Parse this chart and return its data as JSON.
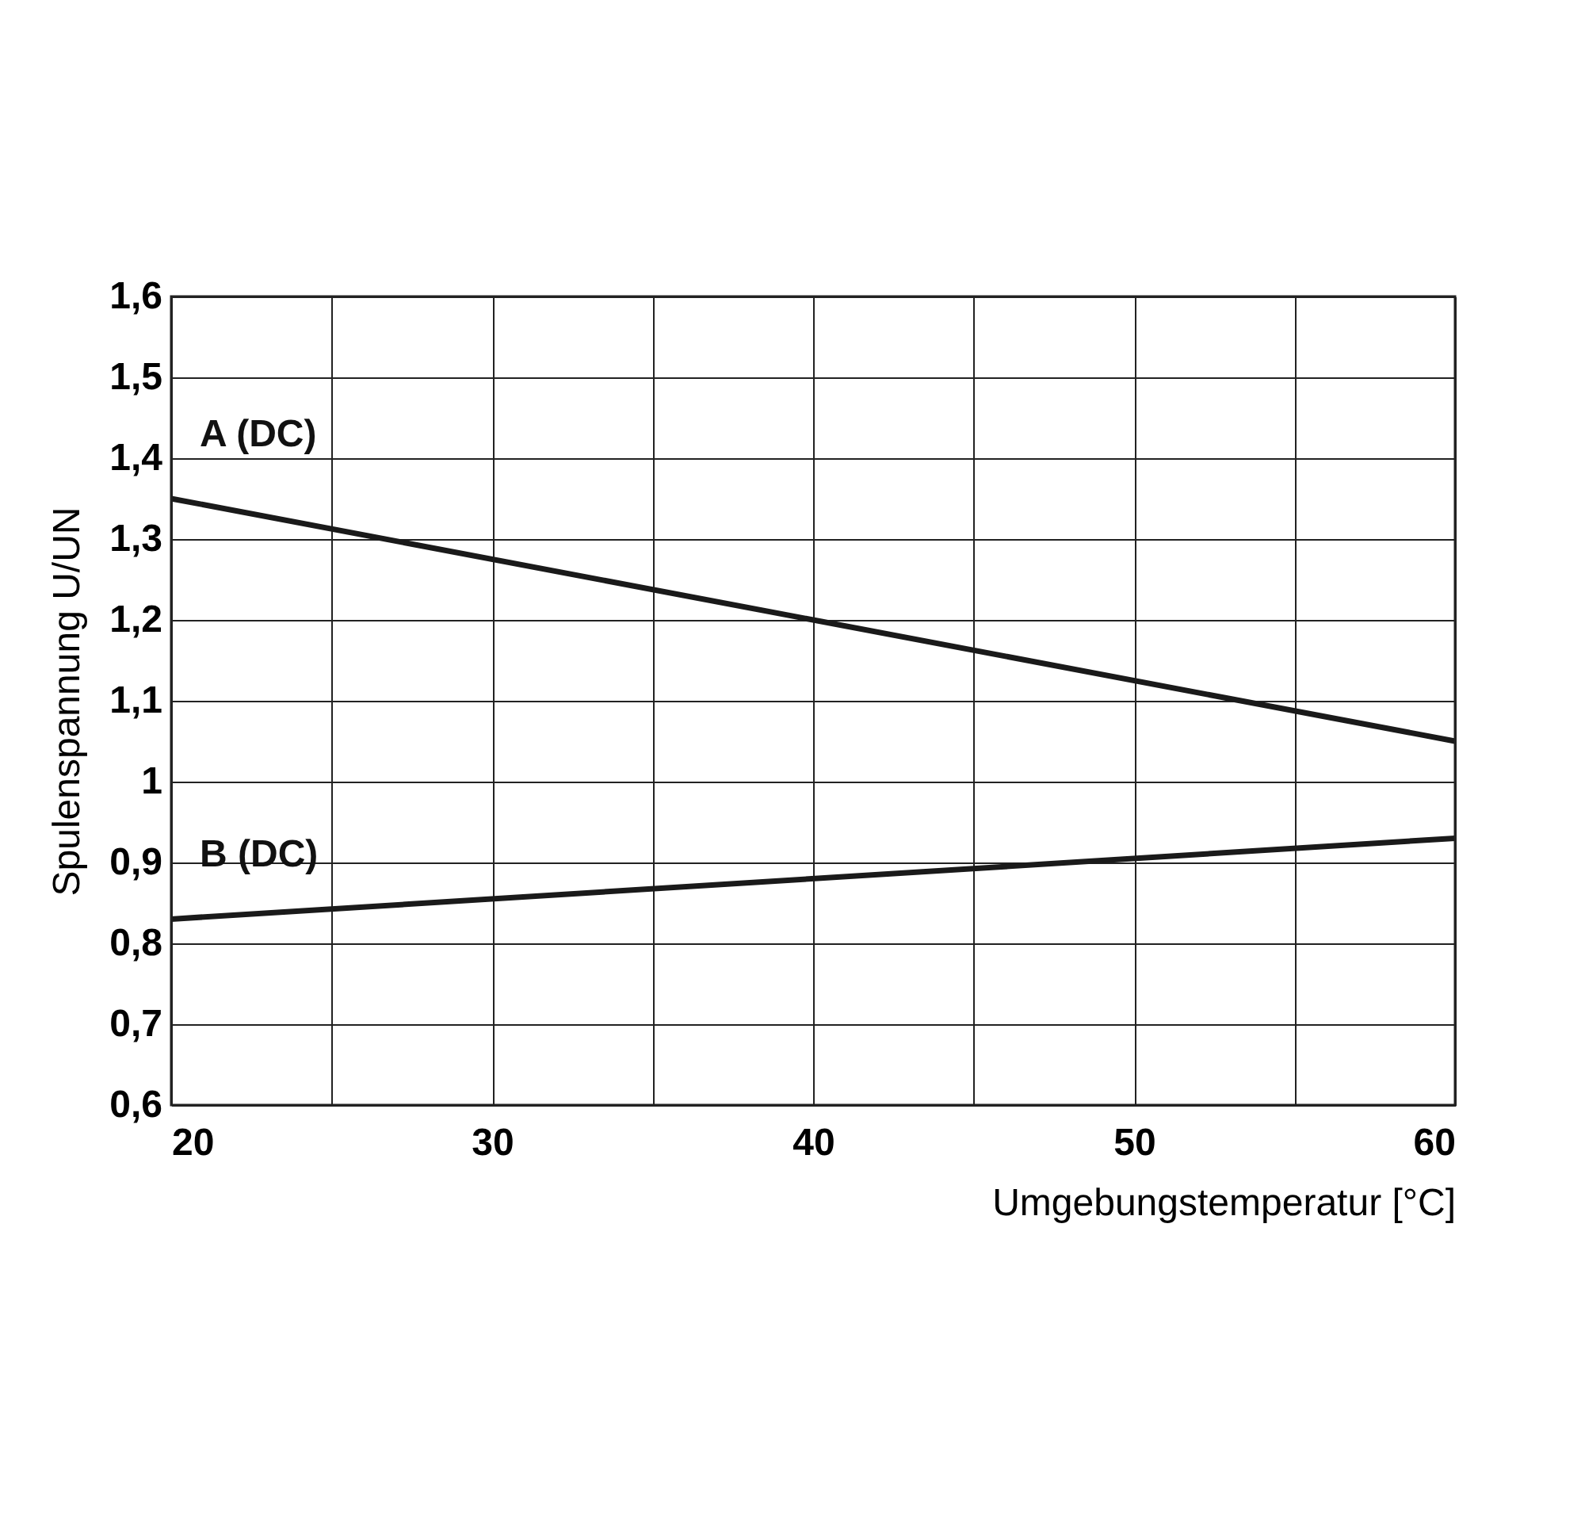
{
  "chart_data": {
    "type": "line",
    "xlabel": "Umgebungstemperatur [°C]",
    "ylabel": "Spulenspannung U/UN",
    "x": [
      20,
      60
    ],
    "series": [
      {
        "name": "A (DC)",
        "color": "#1a1a1a",
        "values": [
          1.35,
          1.05
        ]
      },
      {
        "name": "B (DC)",
        "color": "#1a1a1a",
        "values": [
          0.83,
          0.93
        ]
      }
    ],
    "xlim": [
      20,
      60
    ],
    "ylim": [
      0.6,
      1.6
    ],
    "xticks": [
      20,
      {
        "value": 25,
        "label": null
      },
      30,
      {
        "value": 35,
        "label": null
      },
      40,
      {
        "value": 45,
        "label": null
      },
      50,
      {
        "value": 55,
        "label": null
      },
      60
    ],
    "yticks": [
      {
        "value": 0.6,
        "label": "0,6"
      },
      {
        "value": 0.7,
        "label": "0,7"
      },
      {
        "value": 0.8,
        "label": "0,8"
      },
      {
        "value": 0.9,
        "label": "0,9"
      },
      {
        "value": 1,
        "label": "1"
      },
      {
        "value": 1.1,
        "label": "1,1"
      },
      {
        "value": 1.2,
        "label": "1,2"
      },
      {
        "value": 1.3,
        "label": "1,3"
      },
      {
        "value": 1.4,
        "label": "1,4"
      },
      {
        "value": 1.5,
        "label": "1,5"
      },
      {
        "value": 1.6,
        "label": "1,6"
      }
    ],
    "grid": true,
    "legend": false,
    "marker": "none",
    "line_style": "solid"
  }
}
